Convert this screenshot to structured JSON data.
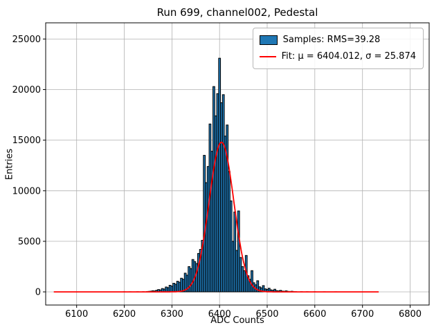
{
  "chart_data": {
    "type": "bar",
    "title": "Run 699, channel002, Pedestal",
    "xlabel": "ADC Counts",
    "ylabel": "Entries",
    "xlim": [
      6035,
      6840
    ],
    "ylim": [
      -1300,
      26600
    ],
    "grid": true,
    "x_ticks": [
      6100,
      6200,
      6300,
      6400,
      6500,
      6600,
      6700,
      6800
    ],
    "y_ticks": [
      0,
      5000,
      10000,
      15000,
      20000,
      25000
    ],
    "bin_width": 4,
    "bin_centers": [
      6200,
      6212,
      6228,
      6240,
      6248,
      6252,
      6256,
      6260,
      6264,
      6268,
      6272,
      6276,
      6280,
      6284,
      6288,
      6292,
      6296,
      6300,
      6304,
      6308,
      6312,
      6316,
      6320,
      6324,
      6328,
      6332,
      6336,
      6340,
      6344,
      6348,
      6352,
      6356,
      6360,
      6364,
      6368,
      6372,
      6376,
      6380,
      6384,
      6388,
      6392,
      6396,
      6400,
      6404,
      6408,
      6412,
      6416,
      6420,
      6424,
      6428,
      6432,
      6436,
      6440,
      6444,
      6448,
      6452,
      6456,
      6460,
      6464,
      6468,
      6472,
      6476,
      6480,
      6484,
      6488,
      6492,
      6496,
      6500,
      6504,
      6508,
      6512,
      6516,
      6520,
      6524,
      6528,
      6532,
      6536,
      6540,
      6544,
      6548,
      6552,
      6556,
      6560,
      6572,
      6584,
      6600,
      6620,
      6644
    ],
    "counts": [
      12,
      10,
      15,
      20,
      35,
      50,
      70,
      110,
      90,
      160,
      230,
      190,
      330,
      280,
      480,
      420,
      650,
      560,
      850,
      760,
      1050,
      950,
      1350,
      1250,
      1850,
      1650,
      2500,
      2300,
      3200,
      3000,
      2800,
      3800,
      4200,
      5100,
      13500,
      10800,
      12400,
      16600,
      13900,
      20300,
      17400,
      19600,
      23100,
      18700,
      19500,
      15400,
      16500,
      11900,
      9000,
      5000,
      7900,
      4100,
      8000,
      3400,
      2500,
      2100,
      3600,
      1600,
      1250,
      2100,
      900,
      700,
      1100,
      500,
      400,
      620,
      300,
      240,
      360,
      200,
      150,
      260,
      120,
      95,
      150,
      75,
      60,
      100,
      50,
      40,
      60,
      30,
      25,
      20,
      15,
      12,
      10,
      8
    ],
    "histogram_color": "#1f77b4",
    "histogram_edge_color": "#000000",
    "fit": {
      "mu": 6404.012,
      "sigma": 25.874,
      "amplitude": 14800,
      "x_start": 6052,
      "x_end": 6735,
      "color": "#ff0000"
    },
    "legend": {
      "position": "upper right",
      "items": [
        {
          "label": "Samples: RMS=39.28",
          "swatch": "filled-box"
        },
        {
          "label": "Fit: μ = 6404.012, σ = 25.874",
          "swatch": "red-line"
        }
      ]
    },
    "rms": 39.28
  }
}
